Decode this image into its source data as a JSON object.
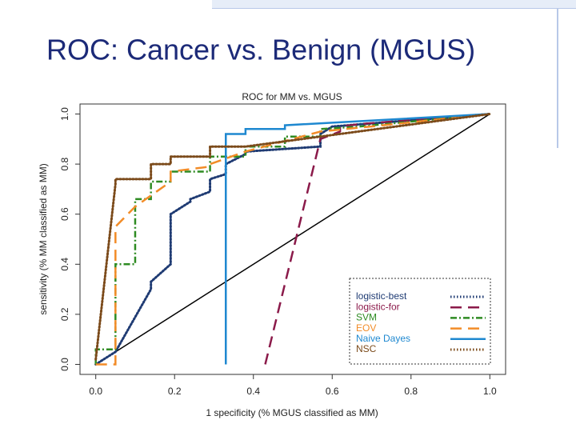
{
  "slide_title": "ROC: Cancer vs. Benign (MGUS)",
  "chart_data": {
    "type": "line",
    "title": "ROC for MM vs. MGUS",
    "x_label": "1 specificity (% MGUS classified as MM)",
    "y_label": "sensitivity (% MM classified as MM)",
    "xlim": [
      -0.04,
      1.04
    ],
    "ylim": [
      -0.04,
      1.04
    ],
    "xticks": [
      {
        "value": 0,
        "label": "0.0"
      },
      {
        "value": 0.2,
        "label": "0.2"
      },
      {
        "value": 0.4,
        "label": "0.4"
      },
      {
        "value": 0.6,
        "label": "0.6"
      },
      {
        "value": 0.8,
        "label": "0.8"
      },
      {
        "value": 1,
        "label": "1.0"
      }
    ],
    "yticks": [
      {
        "value": 0,
        "label": "0.0"
      },
      {
        "value": 0.2,
        "label": "0.2"
      },
      {
        "value": 0.4,
        "label": "0.4"
      },
      {
        "value": 0.6,
        "label": "0.6"
      },
      {
        "value": 0.8,
        "label": "0.8"
      },
      {
        "value": 1,
        "label": "1.0"
      }
    ],
    "reference_line": {
      "x": [
        0,
        1
      ],
      "values": [
        0,
        1
      ],
      "color": "#000000"
    },
    "legend_position": "lower right",
    "series": [
      {
        "name": "logistic-best",
        "color": "#1f3b73",
        "line_style": "dotted",
        "x": [
          0,
          0.05,
          0.05,
          0.14,
          0.14,
          0.19,
          0.19,
          0.24,
          0.24,
          0.29,
          0.29,
          0.33,
          0.33,
          0.38,
          0.38,
          0.57,
          0.57,
          0.6,
          1
        ],
        "values": [
          0,
          0.05,
          0.05,
          0.3,
          0.33,
          0.4,
          0.6,
          0.65,
          0.66,
          0.69,
          0.74,
          0.76,
          0.8,
          0.84,
          0.85,
          0.87,
          0.92,
          0.95,
          1
        ]
      },
      {
        "name": "logistic-for",
        "color": "#8b1a4a",
        "line_style": "dashed",
        "x": [
          0.43,
          0.57,
          0.62,
          0.62,
          0.67,
          1
        ],
        "values": [
          0,
          0.9,
          0.93,
          0.95,
          0.96,
          1
        ]
      },
      {
        "name": "SVM",
        "color": "#2e8b22",
        "line_style": "dashdot",
        "x": [
          0,
          0,
          0.05,
          0.05,
          0.1,
          0.1,
          0.14,
          0.14,
          0.19,
          0.19,
          0.29,
          0.29,
          0.38,
          0.38,
          0.48,
          0.48,
          0.57,
          0.57,
          0.67,
          1
        ],
        "values": [
          0,
          0.06,
          0.06,
          0.4,
          0.4,
          0.66,
          0.66,
          0.73,
          0.73,
          0.77,
          0.77,
          0.83,
          0.83,
          0.87,
          0.87,
          0.91,
          0.91,
          0.94,
          0.95,
          1
        ]
      },
      {
        "name": "EOV",
        "color": "#f28c28",
        "line_style": "dashed",
        "x": [
          0,
          0.05,
          0.05,
          0.05,
          0.1,
          0.19,
          0.19,
          0.29,
          0.29,
          0.38,
          0.57,
          0.76,
          1
        ],
        "values": [
          0,
          0,
          0.01,
          0.55,
          0.63,
          0.73,
          0.77,
          0.79,
          0.8,
          0.85,
          0.93,
          0.96,
          1
        ]
      },
      {
        "name": "Naive Dayes",
        "color": "#1e88d0",
        "line_style": "solid",
        "x": [
          0.33,
          0.33,
          0.38,
          0.38,
          0.48,
          0.48,
          1
        ],
        "values": [
          0,
          0.92,
          0.92,
          0.94,
          0.94,
          0.955,
          1
        ]
      },
      {
        "name": "NSC",
        "color": "#7b4a1a",
        "line_style": "dotted",
        "x": [
          0,
          0.05,
          0.05,
          0.14,
          0.14,
          0.19,
          0.19,
          0.29,
          0.29,
          0.38,
          1
        ],
        "values": [
          0.02,
          0.72,
          0.74,
          0.74,
          0.8,
          0.8,
          0.83,
          0.83,
          0.87,
          0.87,
          1
        ]
      }
    ]
  }
}
